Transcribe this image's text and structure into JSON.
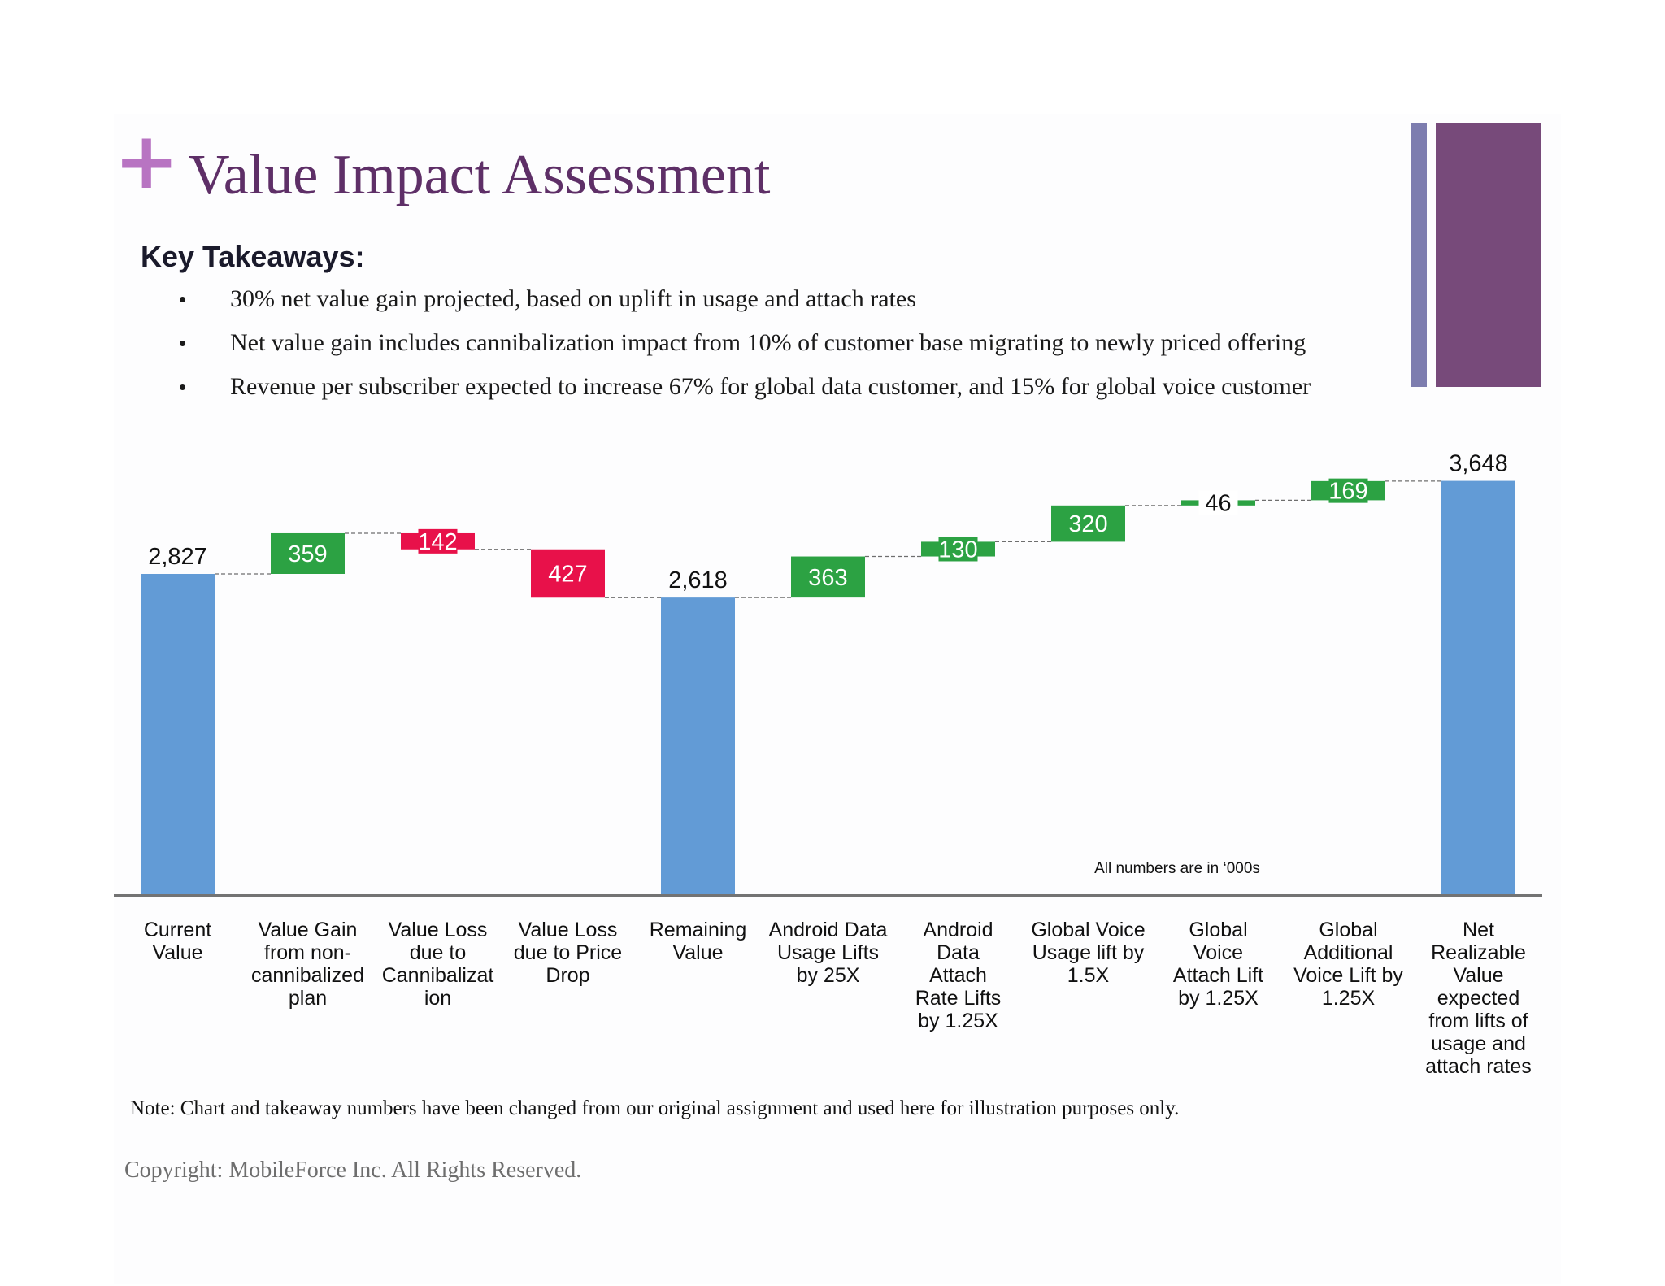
{
  "slide": {
    "plus_glyph": "+",
    "title": "Value Impact Assessment",
    "key_takeaways_heading": "Key Takeaways:",
    "bullet_glyph": "•",
    "bullets": [
      "30% net value gain projected, based on uplift in usage and attach rates",
      "Net value gain includes cannibalization impact from 10% of customer base migrating to newly priced offering",
      "Revenue per subscriber expected to increase 67% for global data customer, and 15% for global voice customer"
    ],
    "note": "Note: Chart and takeaway numbers have been changed from our original assignment and used here for illustration purposes only.",
    "copyright": "Copyright: MobileForce Inc. All Rights Reserved.",
    "colors": {
      "title": "#5e2f67",
      "plus": "#b874c2",
      "accent_thin": "#7d7daf",
      "accent_wide": "#774a7a"
    }
  },
  "chart_data": {
    "type": "bar",
    "subtype": "waterfall",
    "annotation": "All numbers are in ‘000s",
    "categories": [
      [
        "Current",
        "Value"
      ],
      [
        "Value Gain",
        "from non-",
        "cannibalized",
        "plan"
      ],
      [
        "Value Loss",
        "due to",
        "Cannibalizat",
        "ion"
      ],
      [
        "Value Loss",
        "due to Price",
        "Drop"
      ],
      [
        "Remaining",
        "Value"
      ],
      [
        "Android Data",
        "Usage Lifts",
        "by 25X"
      ],
      [
        "Android",
        "Data",
        "Attach",
        "Rate Lifts",
        "by 1.25X"
      ],
      [
        "Global Voice",
        "Usage lift by",
        "1.5X"
      ],
      [
        "Global",
        "Voice",
        "Attach Lift",
        "by 1.25X"
      ],
      [
        "Global",
        "Additional",
        "Voice Lift by",
        "1.25X"
      ],
      [
        "Net",
        "Realizable",
        "Value",
        "expected",
        "from lifts of",
        "usage and",
        "attach rates"
      ]
    ],
    "kinds": [
      "total",
      "increase",
      "decrease",
      "decrease",
      "total",
      "increase",
      "increase",
      "increase",
      "increase",
      "increase",
      "total"
    ],
    "values": [
      2827,
      359,
      142,
      427,
      2618,
      363,
      130,
      320,
      46,
      169,
      3648
    ],
    "labels": [
      "2,827",
      "359",
      "142",
      "427",
      "2,618",
      "363",
      "130",
      "320",
      "46",
      "169",
      "3,648"
    ],
    "ylim": [
      0,
      3648
    ],
    "colors": {
      "total": "#629bd6",
      "increase": "#2ca243",
      "decrease": "#e8114a",
      "connector": "#6e6e6e",
      "axis": "#737373"
    }
  }
}
